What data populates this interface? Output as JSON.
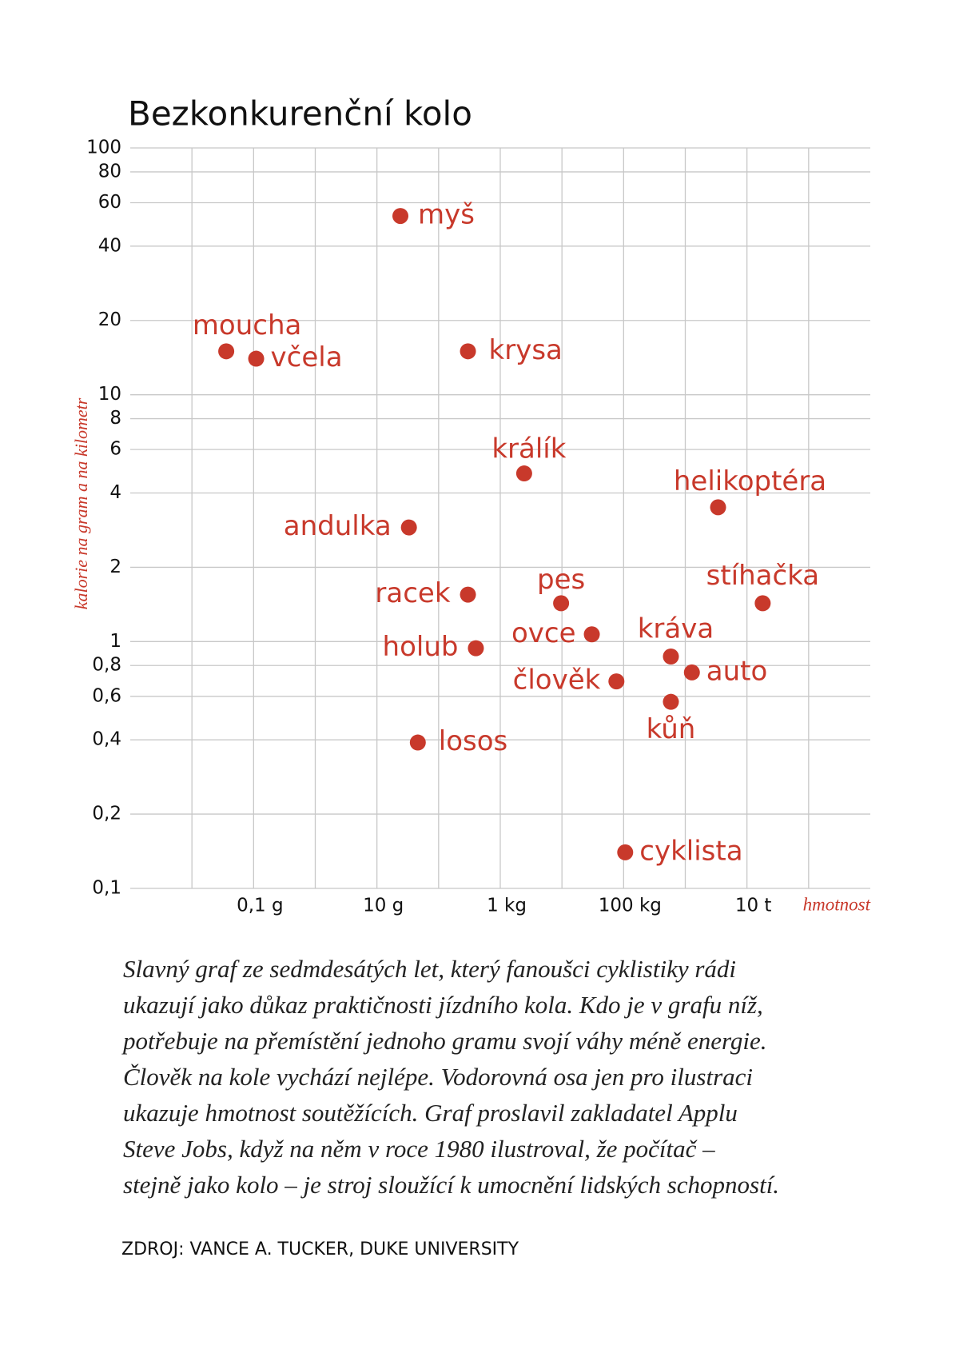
{
  "chart_data": {
    "type": "scatter",
    "title": "Bezkonkurenční kolo",
    "y_label": "kalorie na gram a na kilometr",
    "x_label": "hmotnost",
    "log_x": true,
    "log_y": true,
    "grid": true,
    "color": "#c8392b",
    "xlim": [
      0.001,
      1000000000
    ],
    "ylim": [
      0.1,
      100
    ],
    "xticks": [
      {
        "value": 0.01,
        "label": null
      },
      {
        "value": 0.1,
        "label": "0,1 g"
      },
      {
        "value": 1,
        "label": null
      },
      {
        "value": 10,
        "label": "10 g"
      },
      {
        "value": 100,
        "label": null
      },
      {
        "value": 1000,
        "label": "1 kg"
      },
      {
        "value": 10000,
        "label": null
      },
      {
        "value": 100000,
        "label": "100 kg"
      },
      {
        "value": 1000000,
        "label": null
      },
      {
        "value": 10000000,
        "label": "10 t"
      },
      {
        "value": 100000000,
        "label": null
      }
    ],
    "yticks": [
      100,
      80,
      60,
      40,
      20,
      10,
      8,
      6,
      4,
      2,
      1,
      {
        "value": 0.8,
        "label": "0,8"
      },
      {
        "value": 0.6,
        "label": "0,6"
      },
      {
        "value": 0.4,
        "label": "0,4"
      },
      {
        "value": 0.2,
        "label": "0,2"
      },
      {
        "value": 0.1,
        "label": "0,1"
      }
    ],
    "labels": [
      "myš",
      "moucha",
      "včela",
      "krysa",
      "králík",
      "helikoptéra",
      "andulka",
      "racek",
      "pes",
      "stíhačka",
      "ovce",
      "holub",
      "kráva",
      "auto",
      "člověk",
      "kůň",
      "losos",
      "cyklista"
    ],
    "x": [
      24,
      0.036,
      0.11,
      299,
      2440,
      3400000,
      33,
      299,
      9690,
      18000000,
      30500,
      402,
      584000,
      1280000,
      76400,
      584000,
      46,
      106000
    ],
    "y": [
      53,
      15,
      14,
      15,
      4.8,
      3.5,
      2.9,
      1.55,
      1.43,
      1.43,
      1.07,
      0.94,
      0.87,
      0.75,
      0.69,
      0.57,
      0.39,
      0.14
    ]
  },
  "caption_lines": [
    "Slavný graf ze sedmdesátých let, který fanoušci cyklistiky rádi",
    "ukazují jako důkaz praktičnosti jízdního kola. Kdo je v grafu níž,",
    "potřebuje na přemístění jednoho gramu svojí váhy méně energie.",
    "Člověk na kole vychází nejlépe. Vodorovná osa jen pro ilustraci",
    "ukazuje hmotnost soutěžících. Graf proslavil zakladatel Applu",
    "Steve Jobs, když na něm v roce 1980 ilustroval, že počítač –",
    "stejně jako kolo – je stroj sloužící k umocnění lidských schopností."
  ],
  "source": "ZDROJ: VANCE A. TUCKER, DUKE UNIVERSITY"
}
